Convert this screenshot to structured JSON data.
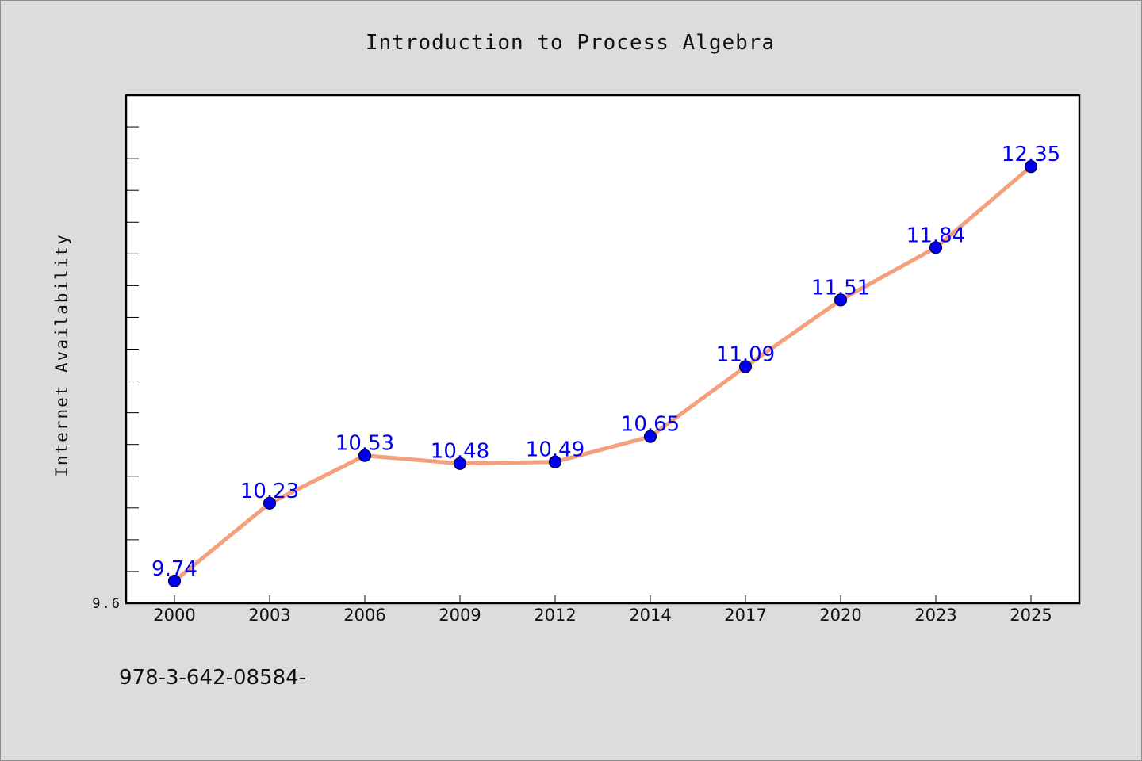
{
  "chart_data": {
    "type": "line",
    "title": "Introduction to Process Algebra",
    "xlabel": "",
    "ylabel": "Internet Availability",
    "categories": [
      "2000",
      "2003",
      "2006",
      "2009",
      "2012",
      "2014",
      "2017",
      "2020",
      "2023",
      "2025"
    ],
    "series": [
      {
        "values": [
          9.74,
          10.23,
          10.53,
          10.48,
          10.49,
          10.65,
          11.09,
          11.51,
          11.84,
          12.35
        ],
        "labels": [
          "9.74",
          "10.23",
          "10.53",
          "10.48",
          "10.49",
          "10.65",
          "11.09",
          "11.51",
          "11.84",
          "12.35"
        ],
        "line_color": "#f4a07c",
        "marker_color": "#0000ee",
        "label_color": "#0000ee"
      }
    ],
    "ylim": [
      9.6,
      12.8
    ],
    "yticks_labeled": [
      "9.6"
    ],
    "grid": false,
    "legend": "none"
  },
  "footer": {
    "text": "978-3-642-08584-"
  }
}
